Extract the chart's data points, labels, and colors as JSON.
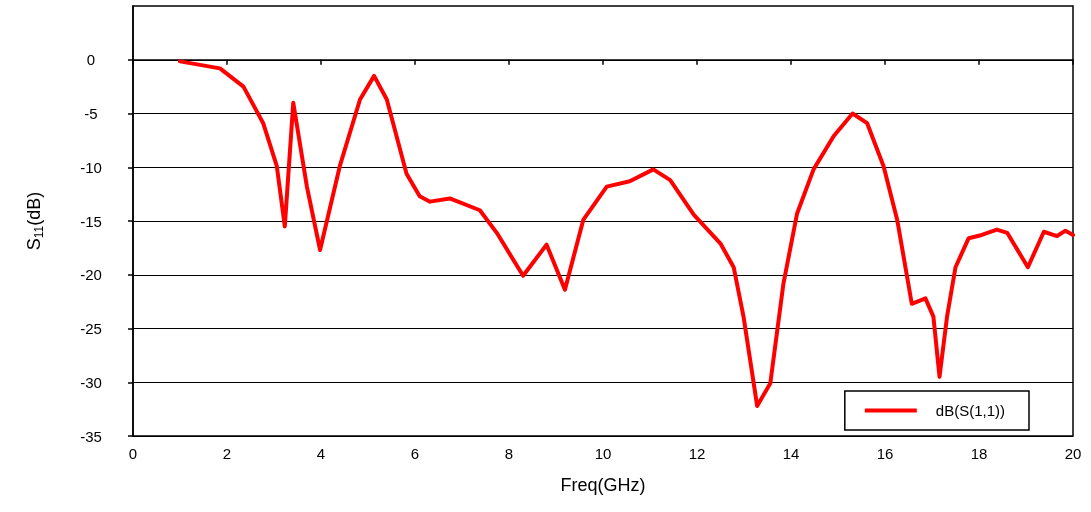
{
  "chart_data": {
    "type": "line",
    "xlabel": "Freq(GHz)",
    "ylabel": "S$_{11}$(dB)",
    "xlim": [
      0,
      20
    ],
    "xticks": [
      0,
      2,
      4,
      6,
      8,
      10,
      12,
      14,
      16,
      18,
      20
    ],
    "ylim": [
      -35,
      5
    ],
    "yticks": [
      -35,
      -30,
      -25,
      -20,
      -15,
      -10,
      -5,
      0
    ],
    "grid": "y",
    "legend": "bottom right",
    "marker": "none",
    "line_style": "solid",
    "series": [
      {
        "name": "dB(S(1,1))",
        "color": "#ff0000",
        "x": [
          1.0,
          1.85,
          2.35,
          2.77,
          3.06,
          3.23,
          3.41,
          3.7,
          3.98,
          4.4,
          4.83,
          5.13,
          5.4,
          5.82,
          6.1,
          6.32,
          6.74,
          7.38,
          7.74,
          8.3,
          8.8,
          9.19,
          9.58,
          10.08,
          10.57,
          11.07,
          11.43,
          11.93,
          12.5,
          12.78,
          12.99,
          13.28,
          13.56,
          13.84,
          14.13,
          14.48,
          14.91,
          15.31,
          15.62,
          15.97,
          16.26,
          16.57,
          16.86,
          17.03,
          17.16,
          17.32,
          17.5,
          17.78,
          18.06,
          18.38,
          18.6,
          19.04,
          19.38,
          19.66,
          19.84,
          20.0
        ],
        "values": [
          -0.15,
          -0.8,
          -2.5,
          -5.9,
          -9.9,
          -15.5,
          -4.0,
          -11.8,
          -17.7,
          -9.9,
          -3.7,
          -1.5,
          -3.7,
          -10.6,
          -12.7,
          -13.2,
          -12.9,
          -14.0,
          -16.1,
          -20.1,
          -17.2,
          -21.4,
          -14.9,
          -11.8,
          -11.3,
          -10.2,
          -11.2,
          -14.4,
          -17.1,
          -19.3,
          -23.9,
          -32.2,
          -30.1,
          -20.8,
          -14.3,
          -10.2,
          -7.1,
          -5.0,
          -5.9,
          -9.9,
          -14.9,
          -22.7,
          -22.2,
          -23.9,
          -29.5,
          -23.9,
          -19.3,
          -16.6,
          -16.3,
          -15.8,
          -16.1,
          -19.3,
          -16.0,
          -16.4,
          -15.9,
          -16.3
        ]
      }
    ]
  }
}
